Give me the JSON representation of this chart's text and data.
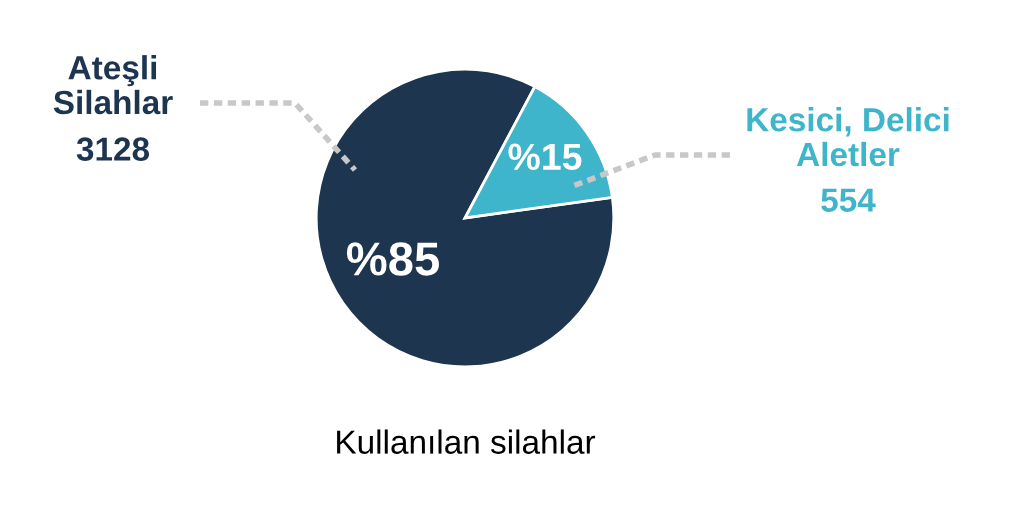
{
  "chart_data": {
    "type": "pie",
    "title": "Kullanılan silahlar",
    "categories": [
      "Ateşli\nSilahlar",
      "Kesici, Delici\nAletler"
    ],
    "values": [
      85,
      15
    ],
    "colors": [
      "#1e3550",
      "#3fb5cb"
    ],
    "value_labels": [
      "%85",
      "%15"
    ],
    "annotations": [
      "3128",
      "554"
    ]
  }
}
